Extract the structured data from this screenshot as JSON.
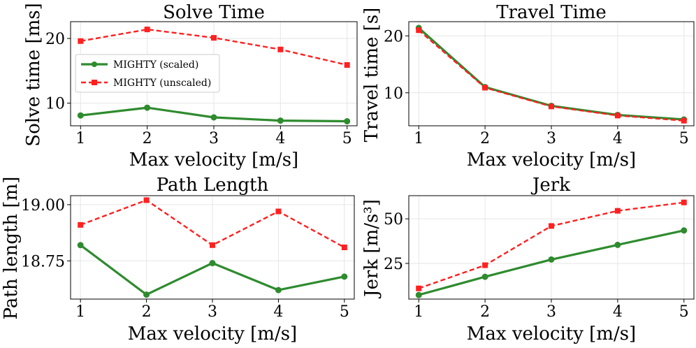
{
  "figure": {
    "legend": {
      "entries": [
        "MIGHTY (scaled)",
        "MIGHTY (unscaled)"
      ]
    }
  },
  "colors": {
    "scaled": "#2e8b2e",
    "unscaled": "#ff2020",
    "grid": "#e6e6e6",
    "axes": "#000000"
  },
  "chart_data": [
    {
      "type": "line",
      "title": "Solve Time",
      "xlabel": "Max velocity [m/s]",
      "ylabel": "Solve time [ms]",
      "x": [
        1,
        2,
        3,
        4,
        5
      ],
      "xticks": [
        "1",
        "2",
        "3",
        "4",
        "5"
      ],
      "yticks": [
        10,
        20
      ],
      "ytick_labels": [
        "10",
        "20"
      ],
      "xlim": [
        0.85,
        5.15
      ],
      "ylim": [
        6.5,
        22.6
      ],
      "legend_position": "center-left",
      "series": [
        {
          "name": "MIGHTY (scaled)",
          "values": [
            8.1,
            9.3,
            7.8,
            7.3,
            7.2
          ]
        },
        {
          "name": "MIGHTY (unscaled)",
          "values": [
            19.6,
            21.4,
            20.1,
            18.3,
            15.9
          ]
        }
      ]
    },
    {
      "type": "line",
      "title": "Travel Time",
      "xlabel": "Max velocity [m/s]",
      "ylabel": "Travel time [s]",
      "x": [
        1,
        2,
        3,
        4,
        5
      ],
      "xticks": [
        "1",
        "2",
        "3",
        "4",
        "5"
      ],
      "yticks": [
        10,
        20
      ],
      "ytick_labels": [
        "10",
        "20"
      ],
      "xlim": [
        0.85,
        5.15
      ],
      "ylim": [
        4.2,
        22.5
      ],
      "series": [
        {
          "name": "MIGHTY (scaled)",
          "values": [
            21.4,
            11.0,
            7.7,
            6.1,
            5.3
          ]
        },
        {
          "name": "MIGHTY (unscaled)",
          "values": [
            21.0,
            10.9,
            7.6,
            6.0,
            5.1
          ]
        }
      ]
    },
    {
      "type": "line",
      "title": "Path Length",
      "xlabel": "Max velocity [m/s]",
      "ylabel": "Path length [m]",
      "x": [
        1,
        2,
        3,
        4,
        5
      ],
      "xticks": [
        "1",
        "2",
        "3",
        "4",
        "5"
      ],
      "yticks": [
        18.75,
        19.0
      ],
      "ytick_labels": [
        "18.75",
        "19.00"
      ],
      "xlim": [
        0.85,
        5.15
      ],
      "ylim": [
        18.58,
        19.04
      ],
      "series": [
        {
          "name": "MIGHTY (scaled)",
          "values": [
            18.82,
            18.6,
            18.74,
            18.62,
            18.68
          ]
        },
        {
          "name": "MIGHTY (unscaled)",
          "values": [
            18.91,
            19.02,
            18.82,
            18.97,
            18.81
          ]
        }
      ]
    },
    {
      "type": "line",
      "title": "Jerk",
      "xlabel": "Max velocity [m/s]",
      "ylabel": "Jerk [m/s³]",
      "x": [
        1,
        2,
        3,
        4,
        5
      ],
      "xticks": [
        "1",
        "2",
        "3",
        "4",
        "5"
      ],
      "yticks": [
        25,
        50
      ],
      "ytick_labels": [
        "25",
        "50"
      ],
      "xlim": [
        0.85,
        5.15
      ],
      "ylim": [
        5.0,
        63.0
      ],
      "series": [
        {
          "name": "MIGHTY (scaled)",
          "values": [
            7.3,
            17.5,
            27.2,
            35.4,
            43.5
          ]
        },
        {
          "name": "MIGHTY (unscaled)",
          "values": [
            11.0,
            24.0,
            46.0,
            54.5,
            59.2
          ]
        }
      ]
    }
  ]
}
